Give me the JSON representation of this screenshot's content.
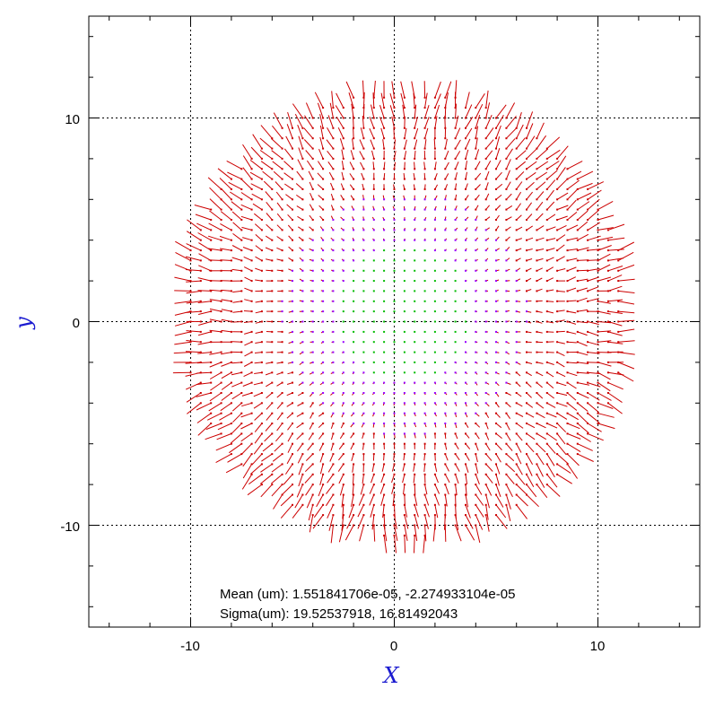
{
  "chart_data": {
    "type": "vector-field",
    "xlabel": "X",
    "ylabel": "y",
    "xlim": [
      -15,
      15
    ],
    "ylim": [
      -15,
      15
    ],
    "xticks": [
      -10,
      0,
      10
    ],
    "yticks": [
      -10,
      0,
      10
    ],
    "tick_labels": {
      "x": [
        "-10",
        "0",
        "10"
      ],
      "y": [
        "-10",
        "0",
        "10"
      ]
    },
    "grid": true,
    "grid_values": {
      "x": [
        -10,
        0,
        10
      ],
      "y": [
        -10,
        0,
        10
      ]
    },
    "field": {
      "grid_spacing": 0.5,
      "region": "disk",
      "center": [
        0.5,
        0.4
      ],
      "radius": 11.0,
      "vector_color": "#cc0000",
      "point_colors": [
        "#00bb00",
        "#9900ff",
        "#cc0000"
      ]
    },
    "stats": {
      "mean_label": "Mean (um): 1.551841706e-05, -2.274933104e-05",
      "sigma_label": "Sigma(um): 19.52537918, 16.81492043"
    }
  },
  "colors": {
    "axis_title": "#1a1ad0",
    "frame": "#000000",
    "grid": "#000000"
  }
}
